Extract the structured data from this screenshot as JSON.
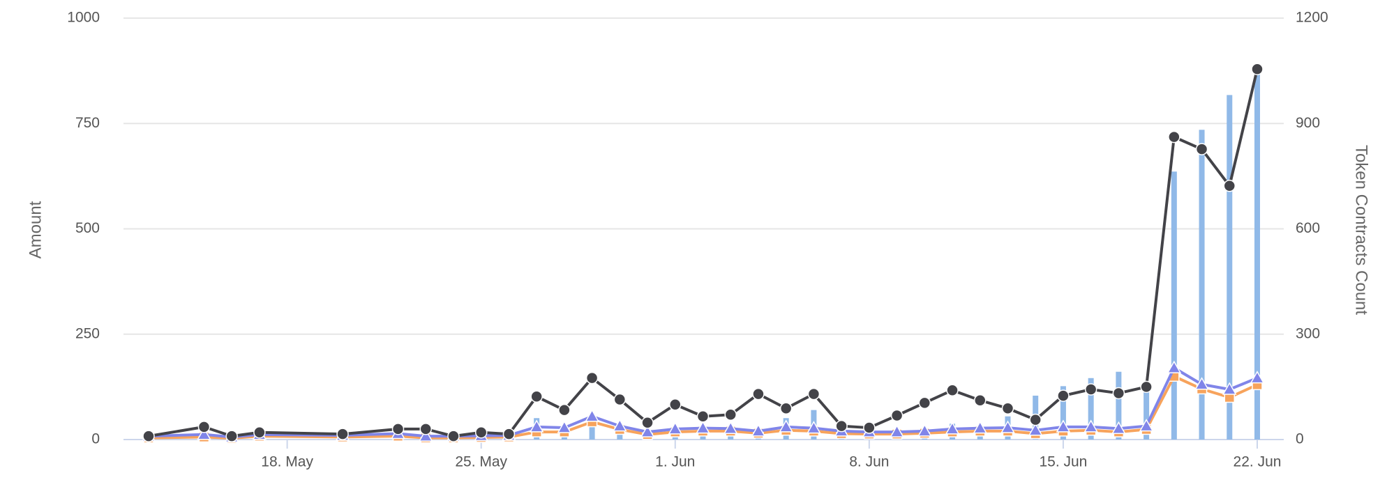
{
  "chart_data": {
    "type": "combo",
    "ylabel": "Amount",
    "y2label": "Token Contracts Count",
    "x": [
      "13. May",
      "15. May",
      "16. May",
      "17. May",
      "20. May",
      "22. May",
      "23. May",
      "24. May",
      "25. May",
      "26. May",
      "27. May",
      "28. May",
      "29. May",
      "30. May",
      "31. May",
      "1. Jun",
      "2. Jun",
      "3. Jun",
      "4. Jun",
      "5. Jun",
      "6. Jun",
      "7. Jun",
      "8. Jun",
      "9. Jun",
      "10. Jun",
      "11. Jun",
      "12. Jun",
      "13. Jun",
      "14. Jun",
      "15. Jun",
      "16. Jun",
      "17. Jun",
      "18. Jun",
      "19. Jun",
      "20. Jun",
      "21. Jun",
      "22. Jun"
    ],
    "xticks": [
      "18. May",
      "25. May",
      "1. Jun",
      "8. Jun",
      "15. Jun",
      "22. Jun"
    ],
    "ylim": [
      0,
      1000
    ],
    "yticks": [
      0,
      250,
      500,
      750,
      1000
    ],
    "y2lim": [
      0,
      1200
    ],
    "y2ticks": [
      0,
      300,
      600,
      900,
      1200
    ],
    "grid": true,
    "series": [
      {
        "type": "bar",
        "axis": "y2",
        "color": "#90b9e8",
        "values": [
          5,
          8,
          4,
          10,
          6,
          12,
          8,
          6,
          8,
          10,
          61,
          20,
          69,
          30,
          10,
          20,
          25,
          20,
          15,
          61,
          84,
          15,
          12,
          15,
          20,
          45,
          25,
          66,
          125,
          152,
          175,
          193,
          140,
          763,
          882,
          981,
          1047
        ]
      },
      {
        "type": "line",
        "marker": "square",
        "color": "#f7a35c",
        "values": [
          4,
          6,
          3,
          8,
          6,
          8,
          4,
          4,
          5,
          6,
          18,
          18,
          42,
          24,
          12,
          18,
          20,
          20,
          15,
          22,
          20,
          14,
          13,
          13,
          15,
          18,
          20,
          20,
          14,
          20,
          22,
          18,
          24,
          150,
          120,
          100,
          130
        ]
      },
      {
        "type": "line",
        "marker": "triangle",
        "color": "#8085e9",
        "values": [
          8,
          12,
          6,
          12,
          10,
          14,
          8,
          8,
          9,
          10,
          30,
          28,
          55,
          32,
          18,
          25,
          27,
          26,
          20,
          30,
          27,
          20,
          18,
          18,
          20,
          25,
          27,
          28,
          22,
          30,
          30,
          26,
          32,
          170,
          131,
          119,
          146
        ]
      },
      {
        "type": "line",
        "marker": "circle",
        "color": "#434348",
        "values": [
          8,
          30,
          8,
          17,
          13,
          25,
          25,
          8,
          17,
          13,
          102,
          70,
          146,
          95,
          40,
          83,
          55,
          59,
          108,
          74,
          108,
          32,
          28,
          57,
          87,
          117,
          93,
          74,
          47,
          104,
          119,
          110,
          125,
          718,
          689,
          602,
          879
        ]
      }
    ]
  }
}
